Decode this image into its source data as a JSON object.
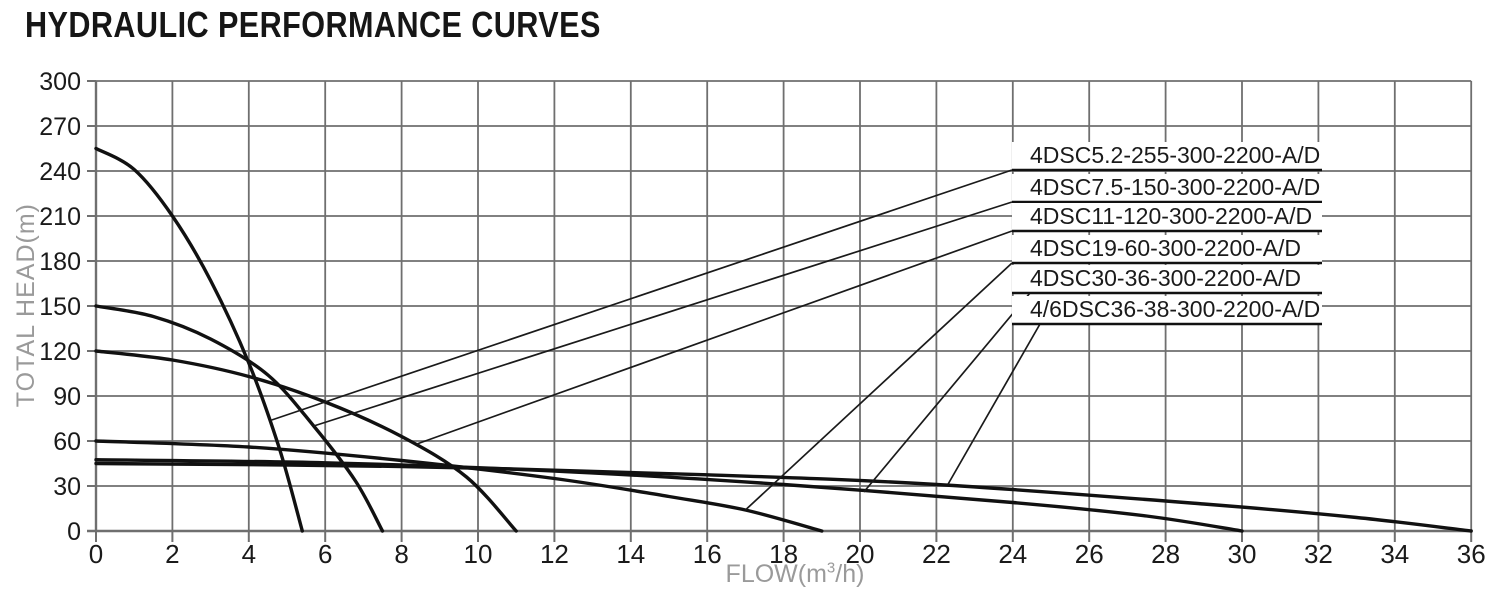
{
  "title": "HYDRAULIC PERFORMANCE CURVES",
  "colors": {
    "background": "#ffffff",
    "curve": "#111111",
    "leader": "#1a1a1a",
    "grid": "#6f6f6f",
    "tick_text": "#1a1a1a",
    "axis_title": "#9a9a9a",
    "label_text": "#1a1a1a",
    "label_box_fill": "#ffffff"
  },
  "chart_data": {
    "type": "line",
    "title": "HYDRAULIC PERFORMANCE CURVES",
    "xlabel": "FLOW(m3/h)",
    "xlabel_display": {
      "pre": "FLOW(m",
      "sup": "3",
      "post": "/h)"
    },
    "ylabel": "TOTAL HEAD(m)",
    "xlim": [
      0,
      36
    ],
    "ylim": [
      0,
      300
    ],
    "x_ticks": [
      0,
      2,
      4,
      6,
      8,
      10,
      12,
      14,
      16,
      18,
      20,
      22,
      24,
      26,
      28,
      30,
      32,
      34,
      36
    ],
    "y_ticks": [
      0,
      30,
      60,
      90,
      120,
      150,
      180,
      210,
      240,
      270,
      300
    ],
    "grid": true,
    "legend_position": "callout-labels-upper-right",
    "series": [
      {
        "name": "4DSC5.2-255-300-2200-A/D",
        "points": [
          [
            0,
            255
          ],
          [
            1,
            241
          ],
          [
            2,
            210
          ],
          [
            3,
            167
          ],
          [
            4,
            112
          ],
          [
            4.8,
            55
          ],
          [
            5.4,
            0
          ]
        ]
      },
      {
        "name": "4DSC7.5-150-300-2200-A/D",
        "points": [
          [
            0,
            150
          ],
          [
            1.5,
            143
          ],
          [
            3,
            128
          ],
          [
            4.5,
            104
          ],
          [
            5.7,
            70
          ],
          [
            6.8,
            33
          ],
          [
            7.5,
            0
          ]
        ]
      },
      {
        "name": "4DSC11-120-300-2200-A/D",
        "points": [
          [
            0,
            120
          ],
          [
            2,
            114
          ],
          [
            4,
            103
          ],
          [
            6,
            86
          ],
          [
            8,
            63
          ],
          [
            9.7,
            36
          ],
          [
            11,
            0
          ]
        ]
      },
      {
        "name": "4DSC19-60-300-2200-A/D",
        "points": [
          [
            0,
            60
          ],
          [
            4,
            56
          ],
          [
            8,
            47
          ],
          [
            12,
            35
          ],
          [
            15,
            23
          ],
          [
            17,
            14
          ],
          [
            19,
            0
          ]
        ]
      },
      {
        "name": "4DSC30-36-300-2200-A/D",
        "points": [
          [
            0,
            47.5
          ],
          [
            6,
            45.5
          ],
          [
            12,
            40
          ],
          [
            18,
            31
          ],
          [
            24,
            19
          ],
          [
            27.5,
            10
          ],
          [
            30,
            0
          ]
        ]
      },
      {
        "name": "4/6DSC36-38-300-2200-A/D",
        "points": [
          [
            0,
            45
          ],
          [
            8,
            43
          ],
          [
            16,
            37.5
          ],
          [
            22,
            31
          ],
          [
            29,
            18
          ],
          [
            33,
            9
          ],
          [
            36,
            0
          ]
        ]
      }
    ],
    "callouts": [
      {
        "series": 0,
        "label": "4DSC5.2-255-300-2200-A/D",
        "attach": [
          4.6,
          74
        ]
      },
      {
        "series": 1,
        "label": "4DSC7.5-150-300-2200-A/D",
        "attach": [
          5.7,
          70
        ]
      },
      {
        "series": 2,
        "label": "4DSC11-120-300-2200-A/D",
        "attach": [
          8.4,
          58
        ]
      },
      {
        "series": 3,
        "label": "4DSC19-60-300-2200-A/D",
        "attach": [
          17,
          14
        ]
      },
      {
        "series": 4,
        "label": "4DSC30-36-300-2200-A/D",
        "attach": [
          20.1,
          26
        ]
      },
      {
        "series": 5,
        "label": "4/6DSC36-38-300-2200-A/D",
        "attach": [
          22.3,
          31
        ]
      }
    ]
  }
}
